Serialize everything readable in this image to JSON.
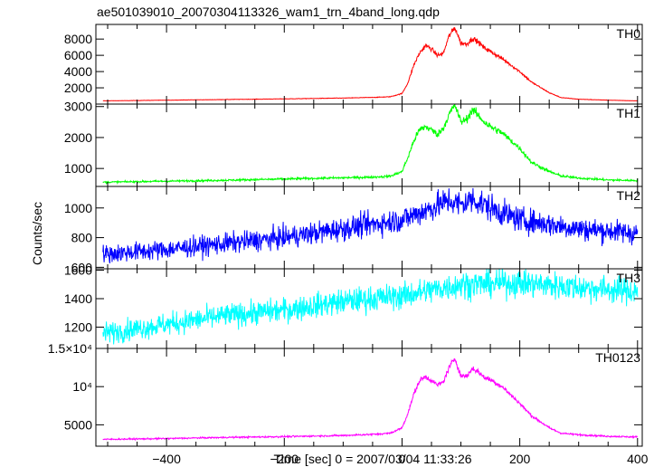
{
  "title": "ae501039010_20070304113326_wam1_trn_4band_long.qdp",
  "ylabel": "Counts/sec",
  "xlabel": "Time [sec] 0 = 2007/03/04 11:33:26",
  "chart_data": [
    {
      "type": "line",
      "name": "TH0",
      "color": "#ff0000",
      "ylim": [
        0,
        9800
      ],
      "yticks": [
        {
          "v": 2000,
          "label": "2000"
        },
        {
          "v": 4000,
          "label": "4000"
        },
        {
          "v": 6000,
          "label": "6000"
        },
        {
          "v": 8000,
          "label": "8000"
        }
      ],
      "noise": 0.02,
      "x": [
        -500,
        -400,
        -300,
        -200,
        -100,
        -50,
        -20,
        0,
        10,
        20,
        30,
        40,
        50,
        60,
        70,
        80,
        90,
        100,
        110,
        120,
        130,
        140,
        150,
        170,
        200,
        220,
        250,
        270,
        300,
        350,
        400
      ],
      "y": [
        400,
        480,
        560,
        640,
        740,
        820,
        900,
        1300,
        2600,
        4800,
        6300,
        7200,
        6800,
        6000,
        6200,
        8400,
        9400,
        7500,
        7400,
        8100,
        7600,
        6900,
        6500,
        5600,
        4000,
        2700,
        1400,
        800,
        600,
        480,
        400
      ]
    },
    {
      "type": "line",
      "name": "TH1",
      "color": "#00ff00",
      "ylim": [
        420,
        3080
      ],
      "yticks": [
        {
          "v": 1000,
          "label": "1000"
        },
        {
          "v": 2000,
          "label": "2000"
        },
        {
          "v": 3000,
          "label": "3000"
        }
      ],
      "noise": 0.025,
      "x": [
        -500,
        -400,
        -300,
        -200,
        -100,
        -50,
        -20,
        0,
        10,
        20,
        30,
        40,
        50,
        60,
        70,
        80,
        90,
        100,
        110,
        120,
        130,
        140,
        150,
        170,
        200,
        220,
        250,
        270,
        300,
        350,
        400
      ],
      "y": [
        560,
        590,
        620,
        660,
        700,
        720,
        750,
        900,
        1350,
        1900,
        2250,
        2350,
        2250,
        2100,
        2300,
        2750,
        3050,
        2500,
        2600,
        2900,
        2700,
        2500,
        2350,
        2150,
        1650,
        1200,
        900,
        760,
        690,
        630,
        610
      ]
    },
    {
      "type": "line",
      "name": "TH2",
      "color": "#0000ff",
      "ylim": [
        590,
        1145
      ],
      "yticks": [
        {
          "v": 600,
          "label": "600"
        },
        {
          "v": 800,
          "label": "800"
        },
        {
          "v": 1000,
          "label": "1000"
        }
      ],
      "noise": 0.045,
      "x": [
        -500,
        -400,
        -300,
        -200,
        -100,
        0,
        50,
        80,
        100,
        120,
        150,
        200,
        300,
        400
      ],
      "y": [
        690,
        720,
        760,
        800,
        860,
        920,
        1000,
        1050,
        1020,
        1060,
        1000,
        920,
        860,
        830
      ]
    },
    {
      "type": "line",
      "name": "TH3",
      "color": "#00ffff",
      "ylim": [
        1050,
        1610
      ],
      "yticks": [
        {
          "v": 1200,
          "label": "1200"
        },
        {
          "v": 1400,
          "label": "1400"
        },
        {
          "v": 1600,
          "label": "1600"
        }
      ],
      "noise": 0.032,
      "x": [
        -500,
        -400,
        -300,
        -200,
        -100,
        0,
        100,
        200,
        300,
        400
      ],
      "y": [
        1160,
        1220,
        1280,
        1320,
        1380,
        1420,
        1500,
        1510,
        1480,
        1450
      ]
    },
    {
      "type": "line",
      "name": "TH0123",
      "color": "#ff00ff",
      "ylim": [
        2200,
        15000
      ],
      "yticks": [
        {
          "v": 5000,
          "label": "5000"
        },
        {
          "v": 10000,
          "label": "10⁴"
        },
        {
          "v": 15000,
          "label": "1.5×10⁴"
        }
      ],
      "noise": 0.015,
      "x": [
        -500,
        -400,
        -300,
        -200,
        -100,
        -50,
        -20,
        0,
        10,
        20,
        30,
        40,
        50,
        60,
        70,
        80,
        90,
        100,
        110,
        120,
        130,
        140,
        150,
        170,
        200,
        220,
        250,
        270,
        300,
        350,
        400
      ],
      "y": [
        3100,
        3200,
        3350,
        3450,
        3600,
        3750,
        3900,
        4600,
        6500,
        9000,
        10800,
        11300,
        10800,
        10200,
        10600,
        12500,
        13700,
        11400,
        11400,
        12400,
        11900,
        11200,
        10900,
        10000,
        7800,
        6200,
        4600,
        3900,
        3700,
        3500,
        3400
      ]
    }
  ],
  "xaxis": {
    "xlim": [
      -520,
      408
    ],
    "ticks": [
      {
        "v": -400,
        "label": "−400"
      },
      {
        "v": -200,
        "label": "−200"
      },
      {
        "v": 0,
        "label": "0"
      },
      {
        "v": 200,
        "label": "200"
      },
      {
        "v": 400,
        "label": "400"
      }
    ]
  }
}
